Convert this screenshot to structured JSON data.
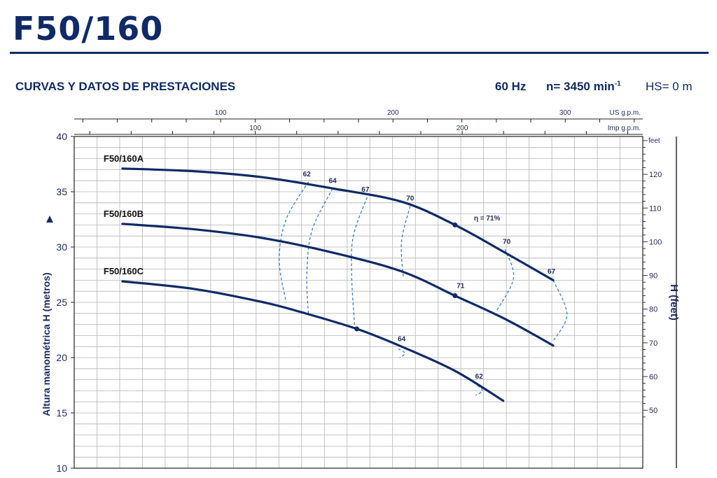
{
  "header": {
    "title": "F50/160",
    "subtitle": "CURVAS Y DATOS DE PRESTACIONES",
    "frequency": "60 Hz",
    "speed": "n= 3450 min",
    "speed_exp": "-1",
    "hs": "HS= 0 m"
  },
  "colors": {
    "curve": "#0f2a66",
    "efficiency": "#3a7fc4",
    "grid": "#b5b5b5",
    "text": "#1d2a5c"
  },
  "chart_data": {
    "type": "line",
    "x_unit": "US g.p.m.",
    "xlim": [
      15,
      345
    ],
    "x2_label": "Imp g.p.m.",
    "ylabel": "Altura manométrica H  (metros)",
    "ylim": [
      10,
      40
    ],
    "yticks": [
      10,
      15,
      20,
      25,
      30,
      35,
      40
    ],
    "y2label": "H (feet)",
    "y2_unit": "feet",
    "y2ticks": [
      50,
      60,
      70,
      80,
      90,
      100,
      110,
      120
    ],
    "us_gpm_ticks": [
      100,
      200,
      300
    ],
    "us_gpm_label": "US g.p.m.",
    "imp_gpm_ticks": [
      100,
      200
    ],
    "imp_gpm_label": "Imp g.p.m.",
    "grid": true,
    "series": [
      {
        "name": "F50/160A",
        "points": [
          [
            43,
            37.1
          ],
          [
            85,
            36.85
          ],
          [
            125,
            36.3
          ],
          [
            165,
            35.3
          ],
          [
            205,
            34.1
          ],
          [
            236,
            32.0
          ],
          [
            265,
            29.5
          ],
          [
            293,
            27.0
          ]
        ]
      },
      {
        "name": "F50/160B",
        "points": [
          [
            43,
            32.1
          ],
          [
            85,
            31.6
          ],
          [
            125,
            30.8
          ],
          [
            165,
            29.5
          ],
          [
            205,
            27.8
          ],
          [
            236,
            25.6
          ],
          [
            265,
            23.5
          ],
          [
            293,
            21.1
          ]
        ]
      },
      {
        "name": "F50/160C",
        "points": [
          [
            43,
            26.9
          ],
          [
            85,
            26.2
          ],
          [
            125,
            25.0
          ],
          [
            147,
            24.1
          ],
          [
            179,
            22.6
          ],
          [
            205,
            21.0
          ],
          [
            236,
            18.8
          ],
          [
            264,
            16.1
          ]
        ]
      }
    ],
    "efficiency_curves": [
      {
        "label": "62",
        "points": [
          [
            151,
            35.9
          ],
          [
            138,
            32.5
          ],
          [
            134,
            28.8
          ],
          [
            138,
            25.0
          ]
        ],
        "label_at": [
          150,
          36.4
        ]
      },
      {
        "label": "64",
        "points": [
          [
            165,
            35.3
          ],
          [
            153,
            31.5
          ],
          [
            150,
            27.5
          ],
          [
            151,
            23.8
          ]
        ],
        "label_at": [
          165,
          35.8
        ]
      },
      {
        "label": "67",
        "points": [
          [
            185,
            34.5
          ],
          [
            177,
            31.0
          ],
          [
            176,
            27.5
          ],
          [
            178,
            22.4
          ]
        ],
        "label_at": [
          184,
          35.0
        ]
      },
      {
        "label": "70",
        "points": [
          [
            210,
            33.7
          ],
          [
            205,
            30.5
          ],
          [
            206,
            27.2
          ]
        ],
        "label_at": [
          210,
          34.2
        ]
      },
      {
        "label": "70",
        "points": [
          [
            265,
            29.8
          ],
          [
            270,
            27.2
          ],
          [
            260,
            24.2
          ]
        ],
        "label_at": [
          266,
          30.3
        ]
      },
      {
        "label": "67",
        "points": [
          [
            293,
            27.0
          ],
          [
            301,
            23.9
          ],
          [
            293,
            21.5
          ]
        ],
        "label_at": [
          292,
          27.6
        ]
      },
      {
        "label": "64",
        "points": [
          [
            203,
            20.8
          ],
          [
            207,
            20.4
          ],
          [
            204,
            20.0
          ]
        ],
        "label_at": [
          205,
          21.5
        ]
      },
      {
        "label": "62",
        "points": [
          [
            249,
            17.5
          ],
          [
            252,
            17.0
          ],
          [
            248,
            16.6
          ]
        ],
        "label_at": [
          250,
          18.1
        ]
      }
    ],
    "efficiency_markers": [
      {
        "label": "η = 71%",
        "point": [
          236,
          32.0
        ],
        "label_at": [
          247,
          32.4
        ]
      },
      {
        "label": "71",
        "point": [
          236,
          25.6
        ],
        "label_at": [
          237,
          26.3
        ]
      },
      {
        "label": "",
        "point": [
          179,
          22.6
        ],
        "label_at": [
          179,
          22.6
        ]
      }
    ]
  }
}
